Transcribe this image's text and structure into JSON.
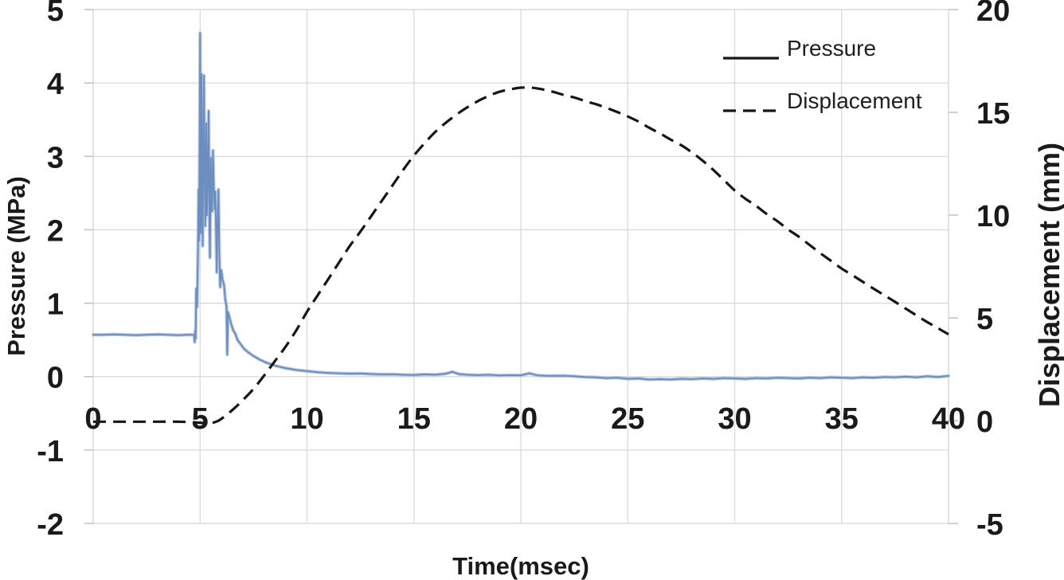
{
  "figure": {
    "description": "Dual-axis line chart of pressure and displacement versus time",
    "background": "#ffffff"
  },
  "colors": {
    "background": "#ffffff",
    "grid": "#d9d9d9",
    "tick": "#c0c0c0",
    "text": "#1a1a1a",
    "pressure_line": "#6d8dbe",
    "pressure_halo": "#b3c4dd",
    "displacement_line": "#161616"
  },
  "chart_data": {
    "type": "line",
    "title": "",
    "xlabel": "Time(msec)",
    "ylabel_left": "Pressure (MPa)",
    "ylabel_right": "Displacement (mm)",
    "grid": true,
    "x_axis": {
      "min": 0,
      "max": 40,
      "ticks": [
        0,
        5,
        10,
        15,
        20,
        25,
        30,
        35,
        40
      ]
    },
    "y_axis_left": {
      "min": -2,
      "max": 5,
      "ticks": [
        5,
        4,
        3,
        2,
        1,
        0,
        -1,
        -2
      ]
    },
    "y_axis_right": {
      "min": -5,
      "max": 20,
      "ticks": [
        20,
        15,
        10,
        5,
        0,
        -5
      ]
    },
    "legend": {
      "position": "top-right",
      "entries": [
        {
          "label": "Pressure",
          "style": "solid",
          "swatch_color": "#161616"
        },
        {
          "label": "Displacement",
          "style": "dashed",
          "swatch_color": "#161616"
        }
      ]
    },
    "series": [
      {
        "name": "Pressure",
        "axis": "left",
        "style": "solid",
        "color": "#6d8dbe",
        "points": [
          [
            0,
            0.57
          ],
          [
            0.5,
            0.57
          ],
          [
            1,
            0.575
          ],
          [
            1.5,
            0.57
          ],
          [
            2,
            0.565
          ],
          [
            2.5,
            0.57
          ],
          [
            3,
            0.575
          ],
          [
            3.5,
            0.57
          ],
          [
            4,
            0.565
          ],
          [
            4.4,
            0.57
          ],
          [
            4.72,
            0.57
          ],
          [
            4.75,
            0.47
          ],
          [
            4.77,
            0.62
          ],
          [
            4.79,
            0.52
          ],
          [
            4.82,
            1.2
          ],
          [
            4.86,
            0.95
          ],
          [
            4.9,
            1.75
          ],
          [
            4.93,
            2.55
          ],
          [
            4.95,
            1.85
          ],
          [
            4.98,
            3.2
          ],
          [
            5.0,
            4.68
          ],
          [
            5.03,
            1.95
          ],
          [
            5.05,
            2.9
          ],
          [
            5.07,
            4.12
          ],
          [
            5.1,
            2.6
          ],
          [
            5.12,
            1.78
          ],
          [
            5.15,
            3.1
          ],
          [
            5.18,
            4.1
          ],
          [
            5.21,
            2.9
          ],
          [
            5.24,
            2.05
          ],
          [
            5.27,
            2.6
          ],
          [
            5.29,
            3.45
          ],
          [
            5.32,
            2.2
          ],
          [
            5.36,
            2.75
          ],
          [
            5.4,
            3.62
          ],
          [
            5.43,
            2.3
          ],
          [
            5.46,
            1.62
          ],
          [
            5.5,
            2.98
          ],
          [
            5.53,
            2.3
          ],
          [
            5.56,
            2.25
          ],
          [
            5.6,
            3.08
          ],
          [
            5.64,
            2.6
          ],
          [
            5.68,
            2.28
          ],
          [
            5.71,
            2.52
          ],
          [
            5.75,
            1.95
          ],
          [
            5.78,
            1.42
          ],
          [
            5.82,
            2.2
          ],
          [
            5.86,
            2.55
          ],
          [
            5.9,
            1.65
          ],
          [
            5.94,
            1.22
          ],
          [
            5.99,
            1.45
          ],
          [
            6.05,
            1.32
          ],
          [
            6.12,
            1.25
          ],
          [
            6.18,
            1.05
          ],
          [
            6.24,
            0.95
          ],
          [
            6.27,
            0.3
          ],
          [
            6.3,
            0.88
          ],
          [
            6.36,
            0.82
          ],
          [
            6.45,
            0.72
          ],
          [
            6.55,
            0.63
          ],
          [
            6.65,
            0.58
          ],
          [
            6.75,
            0.5
          ],
          [
            6.9,
            0.44
          ],
          [
            7.05,
            0.38
          ],
          [
            7.25,
            0.33
          ],
          [
            7.5,
            0.28
          ],
          [
            7.8,
            0.23
          ],
          [
            8.1,
            0.19
          ],
          [
            8.5,
            0.15
          ],
          [
            9,
            0.115
          ],
          [
            9.5,
            0.09
          ],
          [
            10,
            0.075
          ],
          [
            10.5,
            0.06
          ],
          [
            11,
            0.05
          ],
          [
            11.5,
            0.045
          ],
          [
            12,
            0.04
          ],
          [
            12.5,
            0.042
          ],
          [
            13,
            0.035
          ],
          [
            13.5,
            0.03
          ],
          [
            14,
            0.032
          ],
          [
            14.5,
            0.025
          ],
          [
            15,
            0.022
          ],
          [
            15.5,
            0.03
          ],
          [
            16,
            0.025
          ],
          [
            16.5,
            0.04
          ],
          [
            16.8,
            0.065
          ],
          [
            17.1,
            0.035
          ],
          [
            17.5,
            0.025
          ],
          [
            18,
            0.02
          ],
          [
            18.5,
            0.025
          ],
          [
            19,
            0.015
          ],
          [
            19.5,
            0.02
          ],
          [
            20,
            0.018
          ],
          [
            20.4,
            0.045
          ],
          [
            20.8,
            0.015
          ],
          [
            21.3,
            0.01
          ],
          [
            22,
            0.012
          ],
          [
            22.5,
            0.005
          ],
          [
            23,
            -0.005
          ],
          [
            23.5,
            -0.01
          ],
          [
            24,
            -0.02
          ],
          [
            24.5,
            -0.015
          ],
          [
            25,
            -0.03
          ],
          [
            25.5,
            -0.025
          ],
          [
            26,
            -0.04
          ],
          [
            26.5,
            -0.035
          ],
          [
            27,
            -0.04
          ],
          [
            27.5,
            -0.03
          ],
          [
            28,
            -0.035
          ],
          [
            28.5,
            -0.025
          ],
          [
            29,
            -0.03
          ],
          [
            29.5,
            -0.02
          ],
          [
            30,
            -0.025
          ],
          [
            30.5,
            -0.03
          ],
          [
            31,
            -0.02
          ],
          [
            31.5,
            -0.025
          ],
          [
            32,
            -0.015
          ],
          [
            32.5,
            -0.02
          ],
          [
            33,
            -0.025
          ],
          [
            33.5,
            -0.015
          ],
          [
            34,
            -0.02
          ],
          [
            34.5,
            -0.01
          ],
          [
            35,
            -0.015
          ],
          [
            35.5,
            -0.02
          ],
          [
            36,
            -0.01
          ],
          [
            36.5,
            -0.015
          ],
          [
            37,
            -0.005
          ],
          [
            37.5,
            -0.01
          ],
          [
            38,
            0.0
          ],
          [
            38.5,
            -0.01
          ],
          [
            39,
            0.005
          ],
          [
            39.5,
            -0.005
          ],
          [
            40,
            0.01
          ]
        ]
      },
      {
        "name": "Displacement",
        "axis": "right",
        "style": "dashed",
        "color": "#161616",
        "points": [
          [
            0,
            -0.05
          ],
          [
            1,
            -0.05
          ],
          [
            2,
            -0.05
          ],
          [
            3,
            -0.05
          ],
          [
            4,
            -0.05
          ],
          [
            4.5,
            -0.07
          ],
          [
            5,
            -0.1
          ],
          [
            5.4,
            -0.12
          ],
          [
            5.8,
            -0.03
          ],
          [
            6.2,
            0.25
          ],
          [
            6.6,
            0.6
          ],
          [
            7,
            1.0
          ],
          [
            7.5,
            1.55
          ],
          [
            8,
            2.2
          ],
          [
            8.5,
            2.9
          ],
          [
            9,
            3.6
          ],
          [
            9.5,
            4.4
          ],
          [
            10,
            5.3
          ],
          [
            10.5,
            6.1
          ],
          [
            11,
            6.9
          ],
          [
            11.5,
            7.7
          ],
          [
            12,
            8.5
          ],
          [
            12.5,
            9.2
          ],
          [
            13,
            9.95
          ],
          [
            13.5,
            10.7
          ],
          [
            14,
            11.45
          ],
          [
            14.5,
            12.2
          ],
          [
            15,
            12.9
          ],
          [
            15.5,
            13.5
          ],
          [
            16,
            14.05
          ],
          [
            16.5,
            14.5
          ],
          [
            17,
            14.9
          ],
          [
            17.5,
            15.25
          ],
          [
            18,
            15.55
          ],
          [
            18.5,
            15.8
          ],
          [
            19,
            16.0
          ],
          [
            19.5,
            16.12
          ],
          [
            20,
            16.2
          ],
          [
            20.5,
            16.2
          ],
          [
            21,
            16.12
          ],
          [
            21.5,
            16.0
          ],
          [
            22,
            15.85
          ],
          [
            22.5,
            15.72
          ],
          [
            23,
            15.55
          ],
          [
            23.5,
            15.4
          ],
          [
            24,
            15.22
          ],
          [
            24.5,
            15.02
          ],
          [
            25,
            14.8
          ],
          [
            25.5,
            14.55
          ],
          [
            26,
            14.25
          ],
          [
            26.5,
            13.98
          ],
          [
            27,
            13.68
          ],
          [
            27.5,
            13.4
          ],
          [
            28,
            13.05
          ],
          [
            28.5,
            12.65
          ],
          [
            29,
            12.2
          ],
          [
            29.5,
            11.7
          ],
          [
            30,
            11.2
          ],
          [
            30.5,
            10.8
          ],
          [
            31,
            10.45
          ],
          [
            31.5,
            10.05
          ],
          [
            32,
            9.7
          ],
          [
            32.5,
            9.3
          ],
          [
            33,
            8.95
          ],
          [
            33.5,
            8.55
          ],
          [
            34,
            8.15
          ],
          [
            34.5,
            7.78
          ],
          [
            35,
            7.4
          ],
          [
            35.5,
            7.08
          ],
          [
            36,
            6.75
          ],
          [
            36.5,
            6.42
          ],
          [
            37,
            6.1
          ],
          [
            37.5,
            5.78
          ],
          [
            38,
            5.45
          ],
          [
            38.5,
            5.12
          ],
          [
            39,
            4.8
          ],
          [
            39.5,
            4.5
          ],
          [
            40,
            4.2
          ]
        ]
      }
    ]
  }
}
